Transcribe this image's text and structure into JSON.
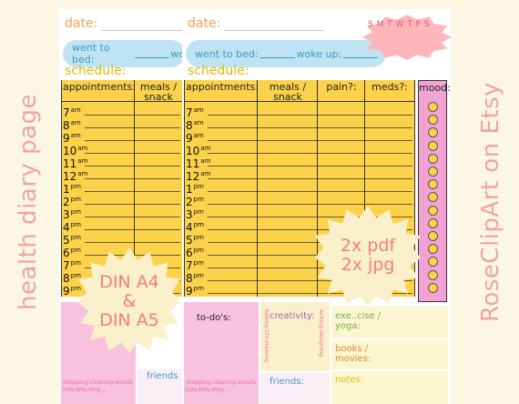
{
  "side": {
    "left_title": "health diary page",
    "right_title": "RoseClipArt on Etsy"
  },
  "back_page": {
    "date_label": "date:",
    "went_to_bed": "went to bed:",
    "woke_up_partial": "wo",
    "schedule_label": "schedule:",
    "columns": [
      "appointments:",
      "meals / snack"
    ],
    "todo_tiny": [
      "shopping-cleaning-emails",
      "kids-bills-blog ..."
    ],
    "friends_label": "friends"
  },
  "front_page": {
    "date_label": "date:",
    "went_to_bed": "went to bed:",
    "woke_up": "woke up:",
    "schedule_label": "schedule:",
    "columns": [
      "appointments:",
      "meals / snack",
      "pain?:",
      "meds?:",
      "mood:"
    ],
    "days": "S M T W T F S",
    "hours": [
      {
        "n": "7",
        "s": "am"
      },
      {
        "n": "8",
        "s": "am"
      },
      {
        "n": "9",
        "s": "am"
      },
      {
        "n": "10",
        "s": "am"
      },
      {
        "n": "11",
        "s": "am"
      },
      {
        "n": "12",
        "s": "am"
      },
      {
        "n": "1",
        "s": "pm"
      },
      {
        "n": "2",
        "s": "pm"
      },
      {
        "n": "3",
        "s": "pm"
      },
      {
        "n": "4",
        "s": "pm"
      },
      {
        "n": "5",
        "s": "pm"
      },
      {
        "n": "6",
        "s": "pm"
      },
      {
        "n": "7",
        "s": "pm"
      },
      {
        "n": "8",
        "s": "pm"
      },
      {
        "n": "9",
        "s": "pm"
      }
    ],
    "todo_label": "to-do's:",
    "todo_tiny": [
      "shopping-cleaning-emails",
      "kids-bills-blog ..."
    ],
    "creativity_label": "creativity:",
    "creativity_tiny": "baking-DIY-drawing",
    "creativity_tiny2": "writing-designing",
    "friends_label": "friends:",
    "exercise_label": "exe..cise / yoga:",
    "books_label": "books / movies:",
    "notes_label": "notes:"
  },
  "badges": {
    "sizes_line1": "DIN A4",
    "sizes_line2": "&",
    "sizes_line3": "DIN A5",
    "formats_line1": "2x pdf",
    "formats_line2": "2x jpg"
  },
  "colors": {
    "yellow": "#fcd24a",
    "pink": "#f3a3d3",
    "blue": "#bfe3f2",
    "salmon": "#f2a3a3"
  }
}
